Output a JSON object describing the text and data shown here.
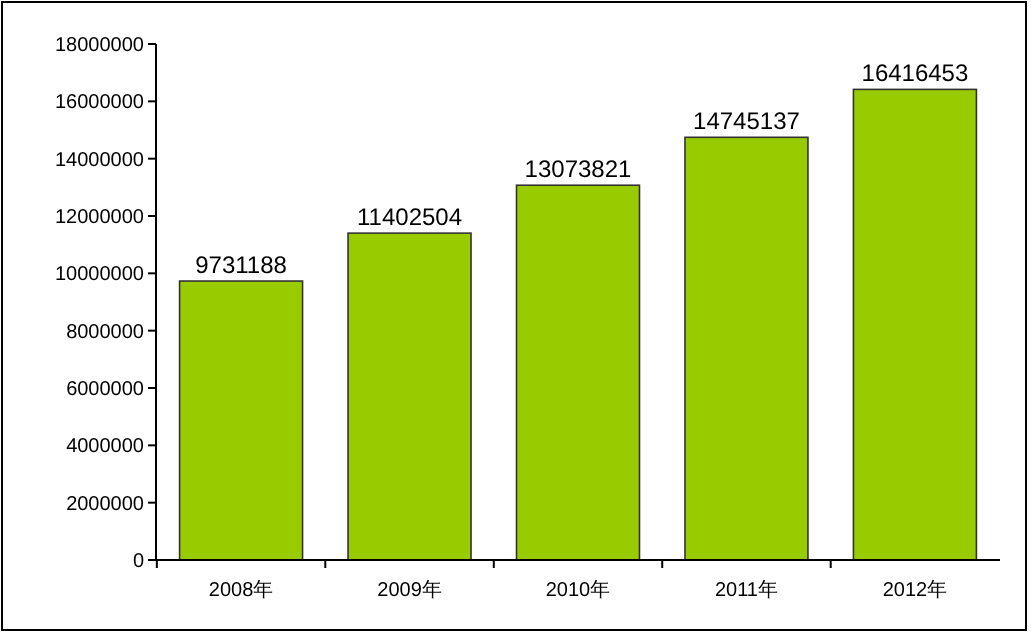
{
  "chart_data": {
    "type": "bar",
    "categories": [
      "2008年",
      "2009年",
      "2010年",
      "2011年",
      "2012年"
    ],
    "values": [
      9731188,
      11402504,
      13073821,
      14745137,
      16416453
    ],
    "color": "#99cc00",
    "ylim": [
      0,
      18000000
    ],
    "yticks": [
      0,
      2000000,
      4000000,
      6000000,
      8000000,
      10000000,
      12000000,
      14000000,
      16000000,
      18000000
    ],
    "grid": false,
    "data_labels": true
  }
}
